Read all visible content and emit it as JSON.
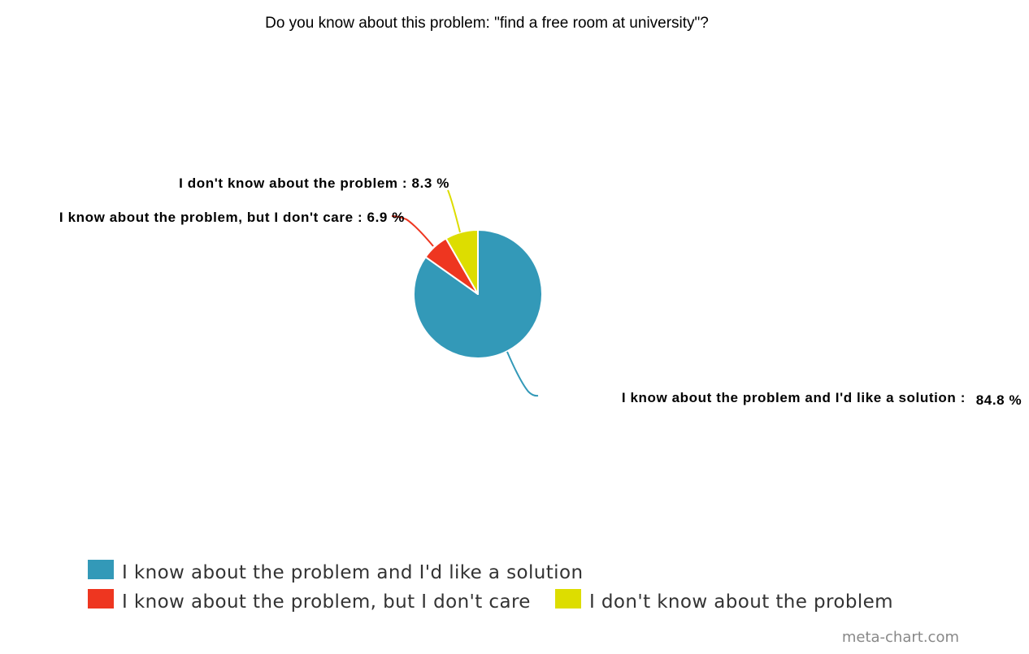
{
  "chart_data": {
    "type": "pie",
    "title": "Do you know about this problem: \"find a free room at university\"?",
    "slices": [
      {
        "label": "I know about the problem and I'd like a solution",
        "callout": "I know about the problem and I'd like a solution :",
        "pct_text": "84.8 %",
        "value": 84.8,
        "color": "#3399b8"
      },
      {
        "label": "I know about the problem, but I don't care",
        "callout": "I know about the problem, but I don't care  : 6.9 %",
        "pct_text": "",
        "value": 6.9,
        "color": "#ee3620"
      },
      {
        "label": "I don't know about the problem",
        "callout": "I don't know about the problem : 8.3 %",
        "pct_text": "",
        "value": 8.3,
        "color": "#dddd00"
      }
    ],
    "start_angle": "top",
    "direction": "clockwise",
    "legend_position": "bottom-left",
    "watermark": "meta-chart.com"
  }
}
